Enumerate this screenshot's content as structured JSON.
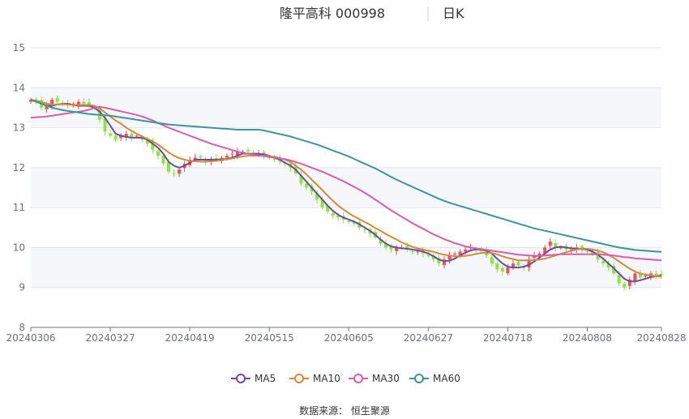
{
  "header": {
    "stock_name": "隆平高科 000998",
    "period": "日K"
  },
  "source": "数据来源： 恒生聚源",
  "colors": {
    "up": "#ef5350",
    "down": "#8de63f",
    "ma5": "#6b4ca3",
    "ma10": "#d48a3a",
    "ma30": "#d35fae",
    "ma60": "#3d9595",
    "grid": "#e0e6f1",
    "band": "#f5f7fb"
  },
  "chart_data": {
    "type": "candlestick",
    "y_axis": {
      "min": 8,
      "max": 15,
      "ticks": [
        "8",
        "9",
        "10",
        "11",
        "12",
        "13",
        "14",
        "15"
      ]
    },
    "x_axis": {
      "ticks": [
        {
          "label": "20240306",
          "index": 0
        },
        {
          "label": "20240327",
          "index": 15
        },
        {
          "label": "20240419",
          "index": 30
        },
        {
          "label": "20240515",
          "index": 45
        },
        {
          "label": "20240605",
          "index": 60
        },
        {
          "label": "20240627",
          "index": 75
        },
        {
          "label": "20240718",
          "index": 90
        },
        {
          "label": "20240808",
          "index": 105
        },
        {
          "label": "20240828",
          "index": 119
        }
      ],
      "count": 120
    },
    "legend": [
      "MA5",
      "MA10",
      "MA30",
      "MA60"
    ],
    "series": {
      "close": [
        13.7,
        13.65,
        13.5,
        13.55,
        13.7,
        13.65,
        13.6,
        13.55,
        13.6,
        13.65,
        13.6,
        13.55,
        13.5,
        13.2,
        12.9,
        12.8,
        12.7,
        12.8,
        12.85,
        12.75,
        12.8,
        12.7,
        12.6,
        12.45,
        12.3,
        12.1,
        11.9,
        11.85,
        11.95,
        12.1,
        12.2,
        12.25,
        12.25,
        12.15,
        12.2,
        12.2,
        12.25,
        12.3,
        12.35,
        12.4,
        12.4,
        12.4,
        12.35,
        12.35,
        12.3,
        12.25,
        12.2,
        12.15,
        12.1,
        12.0,
        11.85,
        11.6,
        11.5,
        11.4,
        11.2,
        11.0,
        10.9,
        10.8,
        10.75,
        10.7,
        10.65,
        10.6,
        10.5,
        10.45,
        10.35,
        10.25,
        10.1,
        10.0,
        9.95,
        10.0,
        10.0,
        9.95,
        9.9,
        9.9,
        9.85,
        9.8,
        9.7,
        9.6,
        9.7,
        9.8,
        9.85,
        9.9,
        9.95,
        10.0,
        9.95,
        9.9,
        9.8,
        9.6,
        9.45,
        9.4,
        9.5,
        9.6,
        9.55,
        9.5,
        9.7,
        9.8,
        9.85,
        10.0,
        10.15,
        10.0,
        10.0,
        9.95,
        9.95,
        10.0,
        9.95,
        9.9,
        9.85,
        9.7,
        9.6,
        9.5,
        9.35,
        9.1,
        9.0,
        9.2,
        9.35,
        9.25,
        9.3,
        9.35,
        9.3,
        9.32
      ],
      "ma5": [
        13.7,
        13.66,
        13.6,
        13.55,
        13.55,
        13.58,
        13.6,
        13.6,
        13.57,
        13.55,
        13.55,
        13.55,
        13.5,
        13.4,
        13.25,
        13.05,
        12.85,
        12.8,
        12.77,
        12.75,
        12.75,
        12.75,
        12.7,
        12.6,
        12.5,
        12.35,
        12.15,
        12.05,
        12.0,
        12.05,
        12.12,
        12.2,
        12.2,
        12.2,
        12.2,
        12.2,
        12.2,
        12.22,
        12.25,
        12.3,
        12.35,
        12.35,
        12.35,
        12.35,
        12.33,
        12.3,
        12.25,
        12.2,
        12.12,
        12.05,
        11.95,
        11.8,
        11.65,
        11.5,
        11.35,
        11.2,
        11.05,
        10.92,
        10.82,
        10.75,
        10.7,
        10.65,
        10.58,
        10.5,
        10.42,
        10.32,
        10.2,
        10.1,
        10.03,
        10.0,
        9.98,
        9.97,
        9.95,
        9.93,
        9.9,
        9.85,
        9.78,
        9.7,
        9.66,
        9.67,
        9.72,
        9.8,
        9.87,
        9.93,
        9.95,
        9.95,
        9.92,
        9.85,
        9.72,
        9.6,
        9.52,
        9.5,
        9.5,
        9.52,
        9.57,
        9.65,
        9.75,
        9.85,
        9.95,
        10.0,
        10.02,
        10.0,
        9.98,
        9.97,
        9.96,
        9.95,
        9.9,
        9.82,
        9.72,
        9.6,
        9.48,
        9.35,
        9.22,
        9.15,
        9.15,
        9.18,
        9.22,
        9.26,
        9.28,
        9.3
      ],
      "ma10": [
        13.7,
        13.68,
        13.64,
        13.6,
        13.58,
        13.58,
        13.59,
        13.58,
        13.57,
        13.57,
        13.57,
        13.57,
        13.55,
        13.48,
        13.38,
        13.28,
        13.18,
        13.1,
        13.0,
        12.92,
        12.85,
        12.78,
        12.72,
        12.66,
        12.58,
        12.48,
        12.38,
        12.3,
        12.24,
        12.2,
        12.17,
        12.16,
        12.15,
        12.15,
        12.16,
        12.17,
        12.19,
        12.21,
        12.23,
        12.26,
        12.28,
        12.3,
        12.3,
        12.3,
        12.3,
        12.29,
        12.27,
        12.24,
        12.2,
        12.14,
        12.05,
        11.95,
        11.83,
        11.7,
        11.57,
        11.44,
        11.3,
        11.17,
        11.05,
        10.95,
        10.86,
        10.78,
        10.71,
        10.64,
        10.57,
        10.49,
        10.42,
        10.34,
        10.27,
        10.2,
        10.13,
        10.07,
        10.02,
        9.98,
        9.95,
        9.92,
        9.89,
        9.85,
        9.82,
        9.8,
        9.78,
        9.78,
        9.79,
        9.81,
        9.84,
        9.86,
        9.87,
        9.86,
        9.83,
        9.78,
        9.74,
        9.71,
        9.68,
        9.68,
        9.68,
        9.69,
        9.7,
        9.72,
        9.76,
        9.8,
        9.84,
        9.88,
        9.92,
        9.95,
        9.97,
        9.97,
        9.95,
        9.92,
        9.88,
        9.82,
        9.74,
        9.65,
        9.56,
        9.47,
        9.4,
        9.35,
        9.32,
        9.3,
        9.28,
        9.27
      ],
      "ma30": [
        13.25,
        13.26,
        13.27,
        13.28,
        13.3,
        13.32,
        13.34,
        13.36,
        13.38,
        13.4,
        13.42,
        13.45,
        13.5,
        13.52,
        13.5,
        13.47,
        13.44,
        13.41,
        13.38,
        13.35,
        13.32,
        13.28,
        13.23,
        13.18,
        13.12,
        13.06,
        13.0,
        12.95,
        12.9,
        12.85,
        12.8,
        12.75,
        12.7,
        12.65,
        12.6,
        12.56,
        12.52,
        12.48,
        12.44,
        12.4,
        12.37,
        12.35,
        12.33,
        12.31,
        12.29,
        12.27,
        12.25,
        12.23,
        12.21,
        12.18,
        12.14,
        12.1,
        12.05,
        12.0,
        11.95,
        11.9,
        11.84,
        11.78,
        11.72,
        11.66,
        11.59,
        11.52,
        11.45,
        11.37,
        11.29,
        11.2,
        11.11,
        11.02,
        10.93,
        10.85,
        10.77,
        10.69,
        10.61,
        10.54,
        10.47,
        10.4,
        10.33,
        10.27,
        10.21,
        10.16,
        10.11,
        10.07,
        10.03,
        10.0,
        9.98,
        9.96,
        9.94,
        9.92,
        9.9,
        9.88,
        9.86,
        9.84,
        9.82,
        9.81,
        9.8,
        9.79,
        9.79,
        9.8,
        9.81,
        9.82,
        9.83,
        9.83,
        9.83,
        9.83,
        9.83,
        9.83,
        9.83,
        9.83,
        9.82,
        9.81,
        9.8,
        9.78,
        9.76,
        9.75,
        9.73,
        9.72,
        9.71,
        9.7,
        9.69,
        9.68
      ],
      "ma60": [
        13.7,
        13.65,
        13.6,
        13.55,
        13.5,
        13.47,
        13.44,
        13.42,
        13.4,
        13.38,
        13.36,
        13.34,
        13.33,
        13.32,
        13.31,
        13.3,
        13.28,
        13.26,
        13.24,
        13.22,
        13.2,
        13.18,
        13.16,
        13.14,
        13.12,
        13.1,
        13.08,
        13.07,
        13.06,
        13.05,
        13.04,
        13.03,
        13.02,
        13.01,
        13.0,
        12.99,
        12.98,
        12.97,
        12.96,
        12.95,
        12.95,
        12.95,
        12.95,
        12.95,
        12.93,
        12.9,
        12.87,
        12.84,
        12.81,
        12.78,
        12.74,
        12.7,
        12.66,
        12.62,
        12.58,
        12.53,
        12.48,
        12.43,
        12.38,
        12.33,
        12.28,
        12.22,
        12.16,
        12.1,
        12.04,
        11.98,
        11.91,
        11.84,
        11.77,
        11.7,
        11.64,
        11.58,
        11.52,
        11.46,
        11.4,
        11.34,
        11.28,
        11.22,
        11.17,
        11.12,
        11.08,
        11.04,
        11.0,
        10.96,
        10.92,
        10.88,
        10.84,
        10.8,
        10.76,
        10.72,
        10.68,
        10.64,
        10.6,
        10.56,
        10.52,
        10.48,
        10.45,
        10.42,
        10.39,
        10.36,
        10.33,
        10.3,
        10.27,
        10.24,
        10.21,
        10.18,
        10.15,
        10.12,
        10.09,
        10.06,
        10.03,
        10.0,
        9.98,
        9.96,
        9.94,
        9.93,
        9.92,
        9.91,
        9.9,
        9.89
      ]
    }
  }
}
